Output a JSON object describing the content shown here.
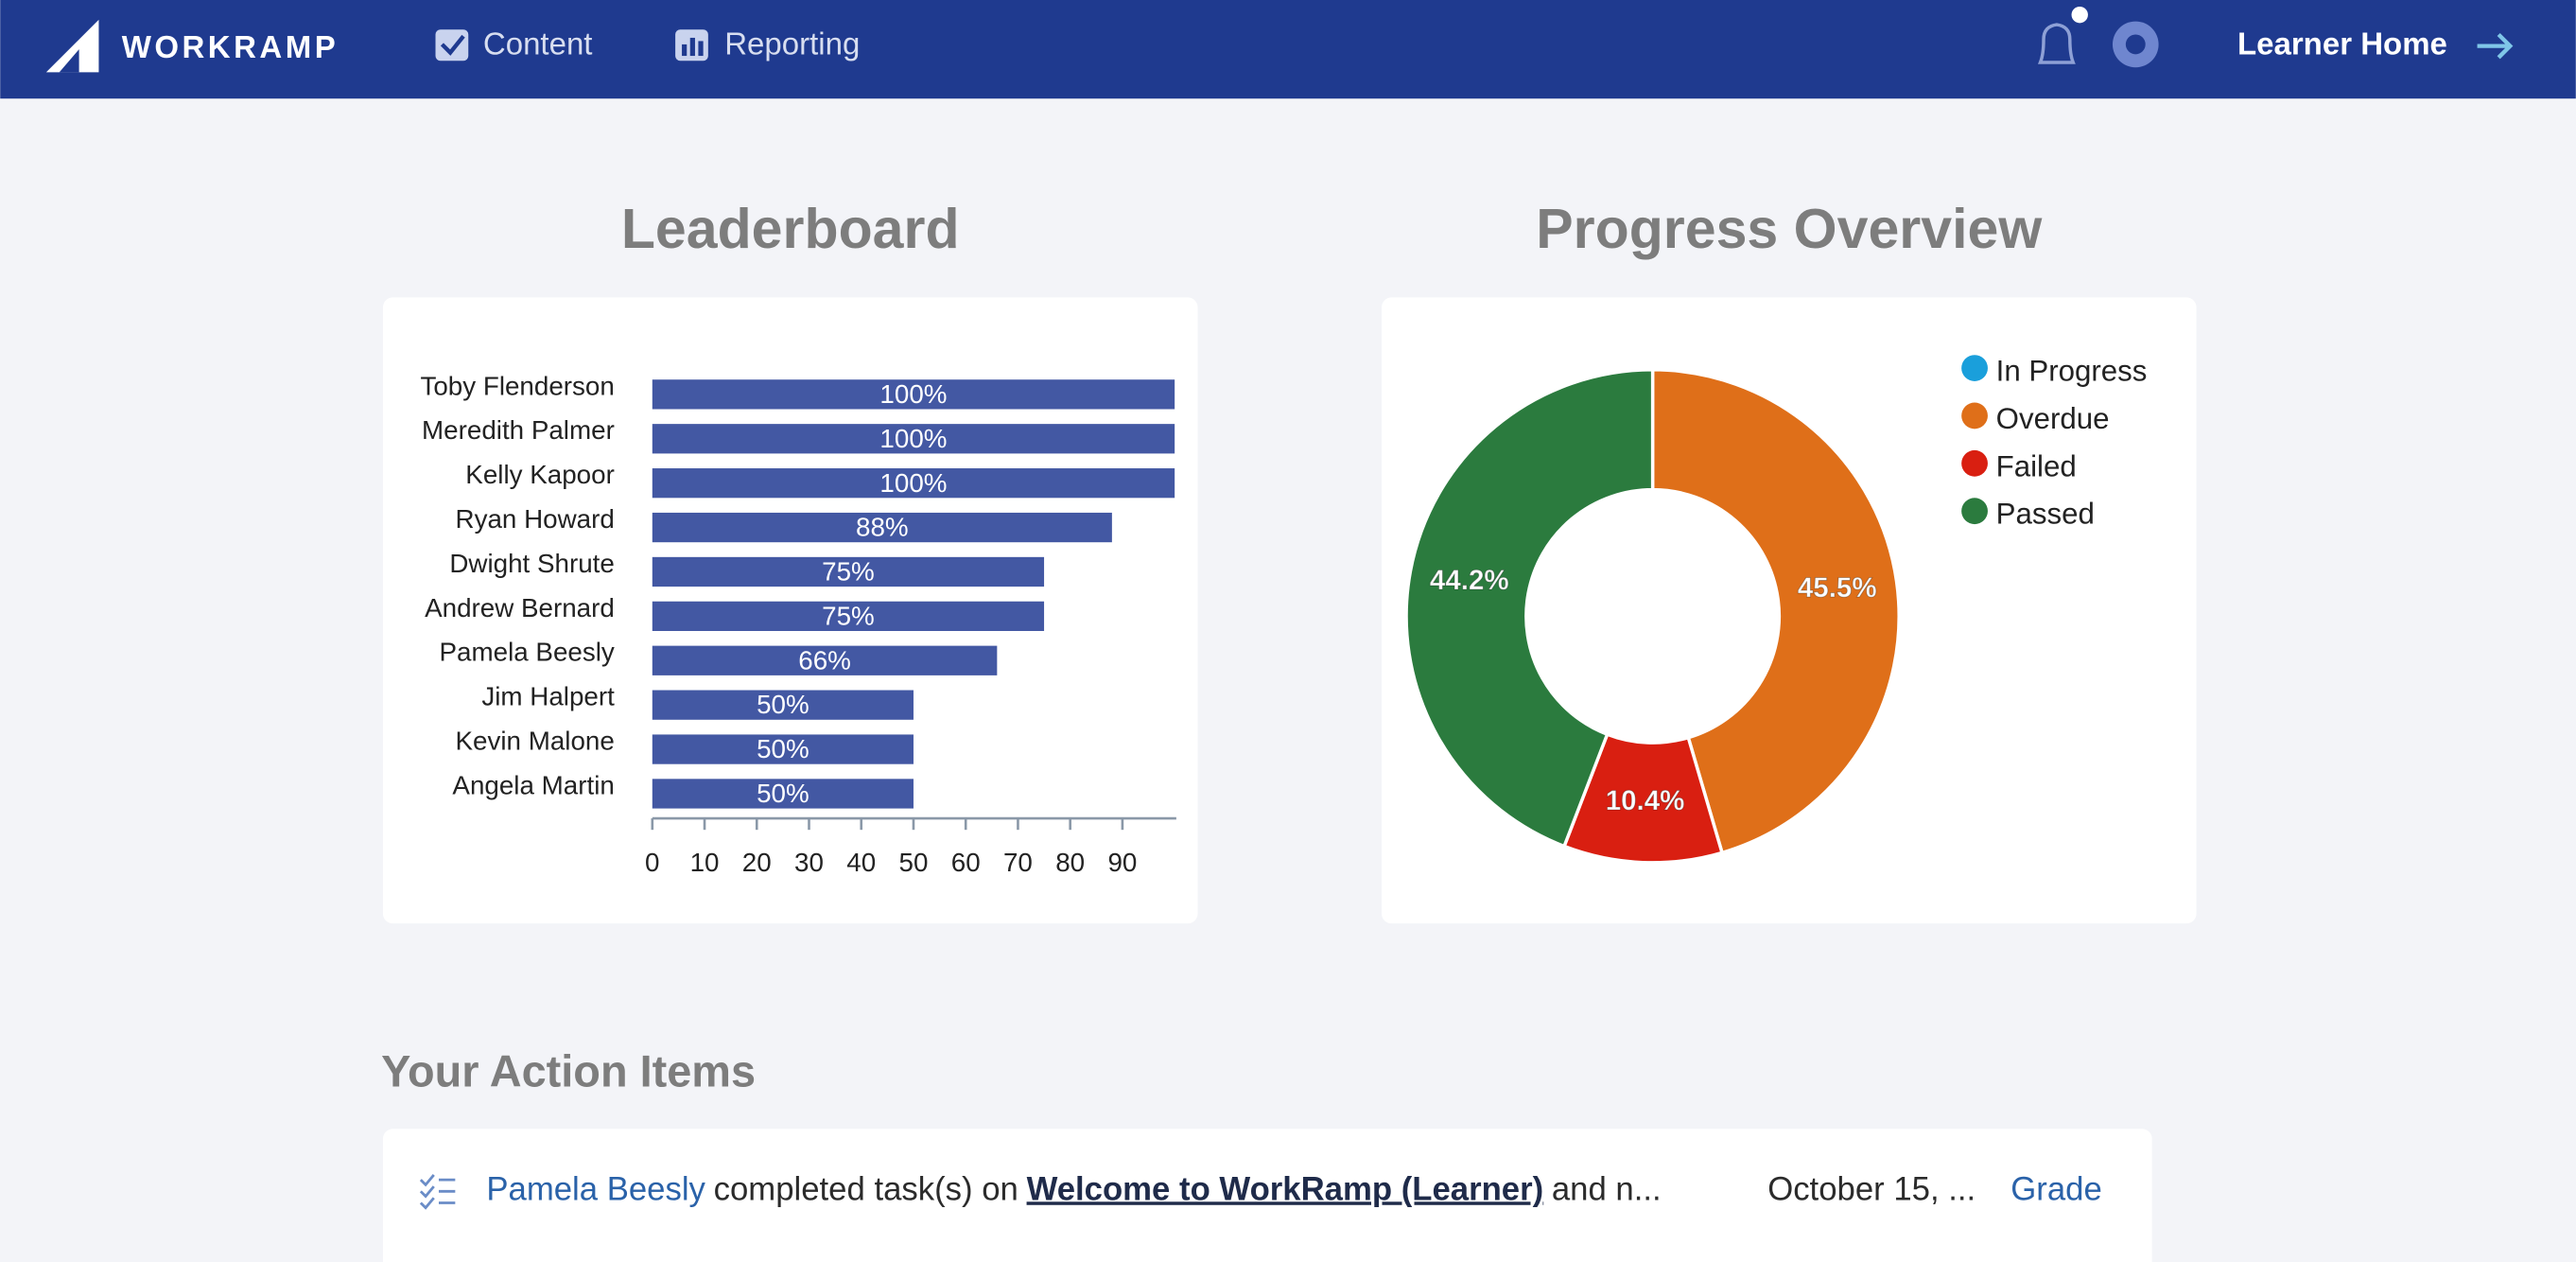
{
  "nav": {
    "brand": "WORKRAMP",
    "links": [
      "Content",
      "Reporting"
    ],
    "learner_home": "Learner Home"
  },
  "chart_data": [
    {
      "type": "barh",
      "title": "Leaderboard",
      "categories": [
        "Toby Flenderson",
        "Meredith Palmer",
        "Kelly Kapoor",
        "Ryan Howard",
        "Dwight Shrute",
        "Andrew Bernard",
        "Pamela Beesly",
        "Jim Halpert",
        "Kevin Malone",
        "Angela Martin"
      ],
      "values": [
        100,
        100,
        100,
        88,
        75,
        75,
        66,
        50,
        50,
        50
      ],
      "value_labels": [
        "100%",
        "100%",
        "100%",
        "88%",
        "75%",
        "75%",
        "66%",
        "50%",
        "50%",
        "50%"
      ],
      "color": "#4358a3",
      "xlim": [
        0,
        100
      ],
      "xticks": [
        0,
        10,
        20,
        30,
        40,
        50,
        60,
        70,
        80,
        90
      ]
    },
    {
      "type": "donut",
      "title": "Progress Overview",
      "legend": "top-right",
      "series": [
        {
          "name": "In Progress",
          "color": "#1a9fdb",
          "value": 0,
          "value_label": null
        },
        {
          "name": "Overdue",
          "color": "#df6f19",
          "value": 45.5,
          "value_label": "45.5%"
        },
        {
          "name": "Failed",
          "color": "#d91f11",
          "value": 10.4,
          "value_label": "10.4%"
        },
        {
          "name": "Passed",
          "color": "#2b7b3e",
          "value": 44.2,
          "value_label": "44.2%"
        }
      ]
    }
  ],
  "action_items": {
    "title": "Your Action Items",
    "items": [
      {
        "user": "Pamela Beesly",
        "text": "completed task(s) on",
        "course": "Welcome to WorkRamp (Learner)",
        "more": "and n...",
        "date": "October 15, ...",
        "action": "Grade"
      }
    ]
  }
}
